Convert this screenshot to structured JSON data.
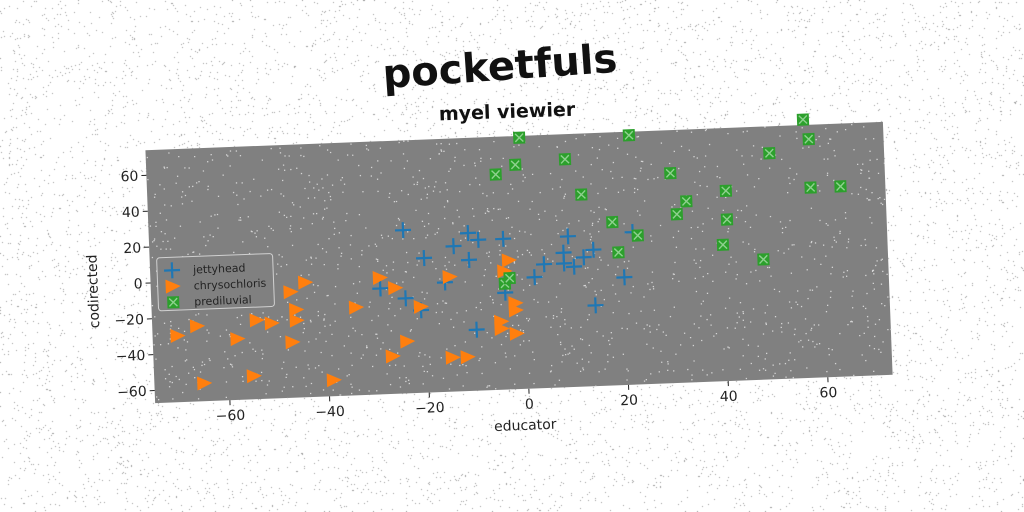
{
  "colors": {
    "plot_background": "#808080",
    "series_jettyhead": "#1f77b4",
    "series_chrysochloris": "#ff7f0e",
    "series_prediluvial": "#2ca02c"
  },
  "chart_data": {
    "type": "scatter",
    "suptitle": "pocketfuls",
    "title": "myel viewier",
    "xlabel": "educator",
    "ylabel": "codirected",
    "xlim": [
      -75,
      73
    ],
    "ylim": [
      -67,
      74
    ],
    "xticks": [
      "−60",
      "−40",
      "−20",
      "0",
      "20",
      "40",
      "60"
    ],
    "yticks": [
      "−60",
      "−40",
      "−20",
      "0",
      "20",
      "40",
      "60"
    ],
    "grid": false,
    "legend_position": "center-left",
    "series": [
      {
        "name": "jettyhead",
        "marker": "plus",
        "color_key": "series_jettyhead",
        "points": [
          [
            -29,
            -8
          ],
          [
            -24,
            -14
          ],
          [
            -24,
            24
          ],
          [
            -21,
            -21
          ],
          [
            -20,
            8
          ],
          [
            -16,
            -6
          ],
          [
            -14,
            14
          ],
          [
            -11,
            21
          ],
          [
            -11,
            6
          ],
          [
            -10,
            -33
          ],
          [
            -9,
            17
          ],
          [
            -4,
            17
          ],
          [
            -4,
            -13
          ],
          [
            2,
            -5
          ],
          [
            4,
            2
          ],
          [
            8,
            2
          ],
          [
            8,
            8
          ],
          [
            9,
            17
          ],
          [
            10,
            0
          ],
          [
            12,
            5
          ],
          [
            14,
            -22
          ],
          [
            14,
            9
          ],
          [
            20,
            -7
          ],
          [
            22,
            18
          ]
        ]
      },
      {
        "name": "chrysochloris",
        "marker": "triangle-right",
        "color_key": "series_chrysochloris",
        "points": [
          [
            -70,
            -30
          ],
          [
            -66,
            -25
          ],
          [
            -65,
            -57
          ],
          [
            -60,
            -8
          ],
          [
            -58,
            -33
          ],
          [
            -55,
            -54
          ],
          [
            -54,
            -23
          ],
          [
            -51,
            -25
          ],
          [
            -47,
            -8
          ],
          [
            -47,
            -36
          ],
          [
            -46,
            -18
          ],
          [
            -46,
            -24
          ],
          [
            -44,
            -3
          ],
          [
            -39,
            -58
          ],
          [
            -34,
            -18
          ],
          [
            -29,
            -2
          ],
          [
            -27,
            -46
          ],
          [
            -26,
            -8
          ],
          [
            -24,
            -38
          ],
          [
            -21,
            -19
          ],
          [
            -15,
            -3
          ],
          [
            -15,
            -48
          ],
          [
            -12,
            -48
          ],
          [
            -5,
            -29
          ],
          [
            -5,
            -33
          ],
          [
            -4,
            -1
          ],
          [
            -3,
            5
          ],
          [
            -2,
            -19
          ],
          [
            -2,
            -23
          ],
          [
            -2,
            -36
          ]
        ]
      },
      {
        "name": "prediluvial",
        "marker": "x-square",
        "color_key": "series_prediluvial",
        "points": [
          [
            -5,
            53
          ],
          [
            -4,
            -8
          ],
          [
            -3,
            -5
          ],
          [
            -1,
            58
          ],
          [
            0,
            73
          ],
          [
            9,
            60
          ],
          [
            12,
            40
          ],
          [
            18,
            24
          ],
          [
            19,
            7
          ],
          [
            22,
            72
          ],
          [
            23,
            16
          ],
          [
            30,
            50
          ],
          [
            31,
            27
          ],
          [
            33,
            34
          ],
          [
            40,
            9
          ],
          [
            41,
            23
          ],
          [
            41,
            39
          ],
          [
            48,
            0
          ],
          [
            50,
            59
          ],
          [
            57,
            77
          ],
          [
            58,
            66
          ],
          [
            58,
            39
          ],
          [
            64,
            39
          ]
        ]
      }
    ]
  }
}
